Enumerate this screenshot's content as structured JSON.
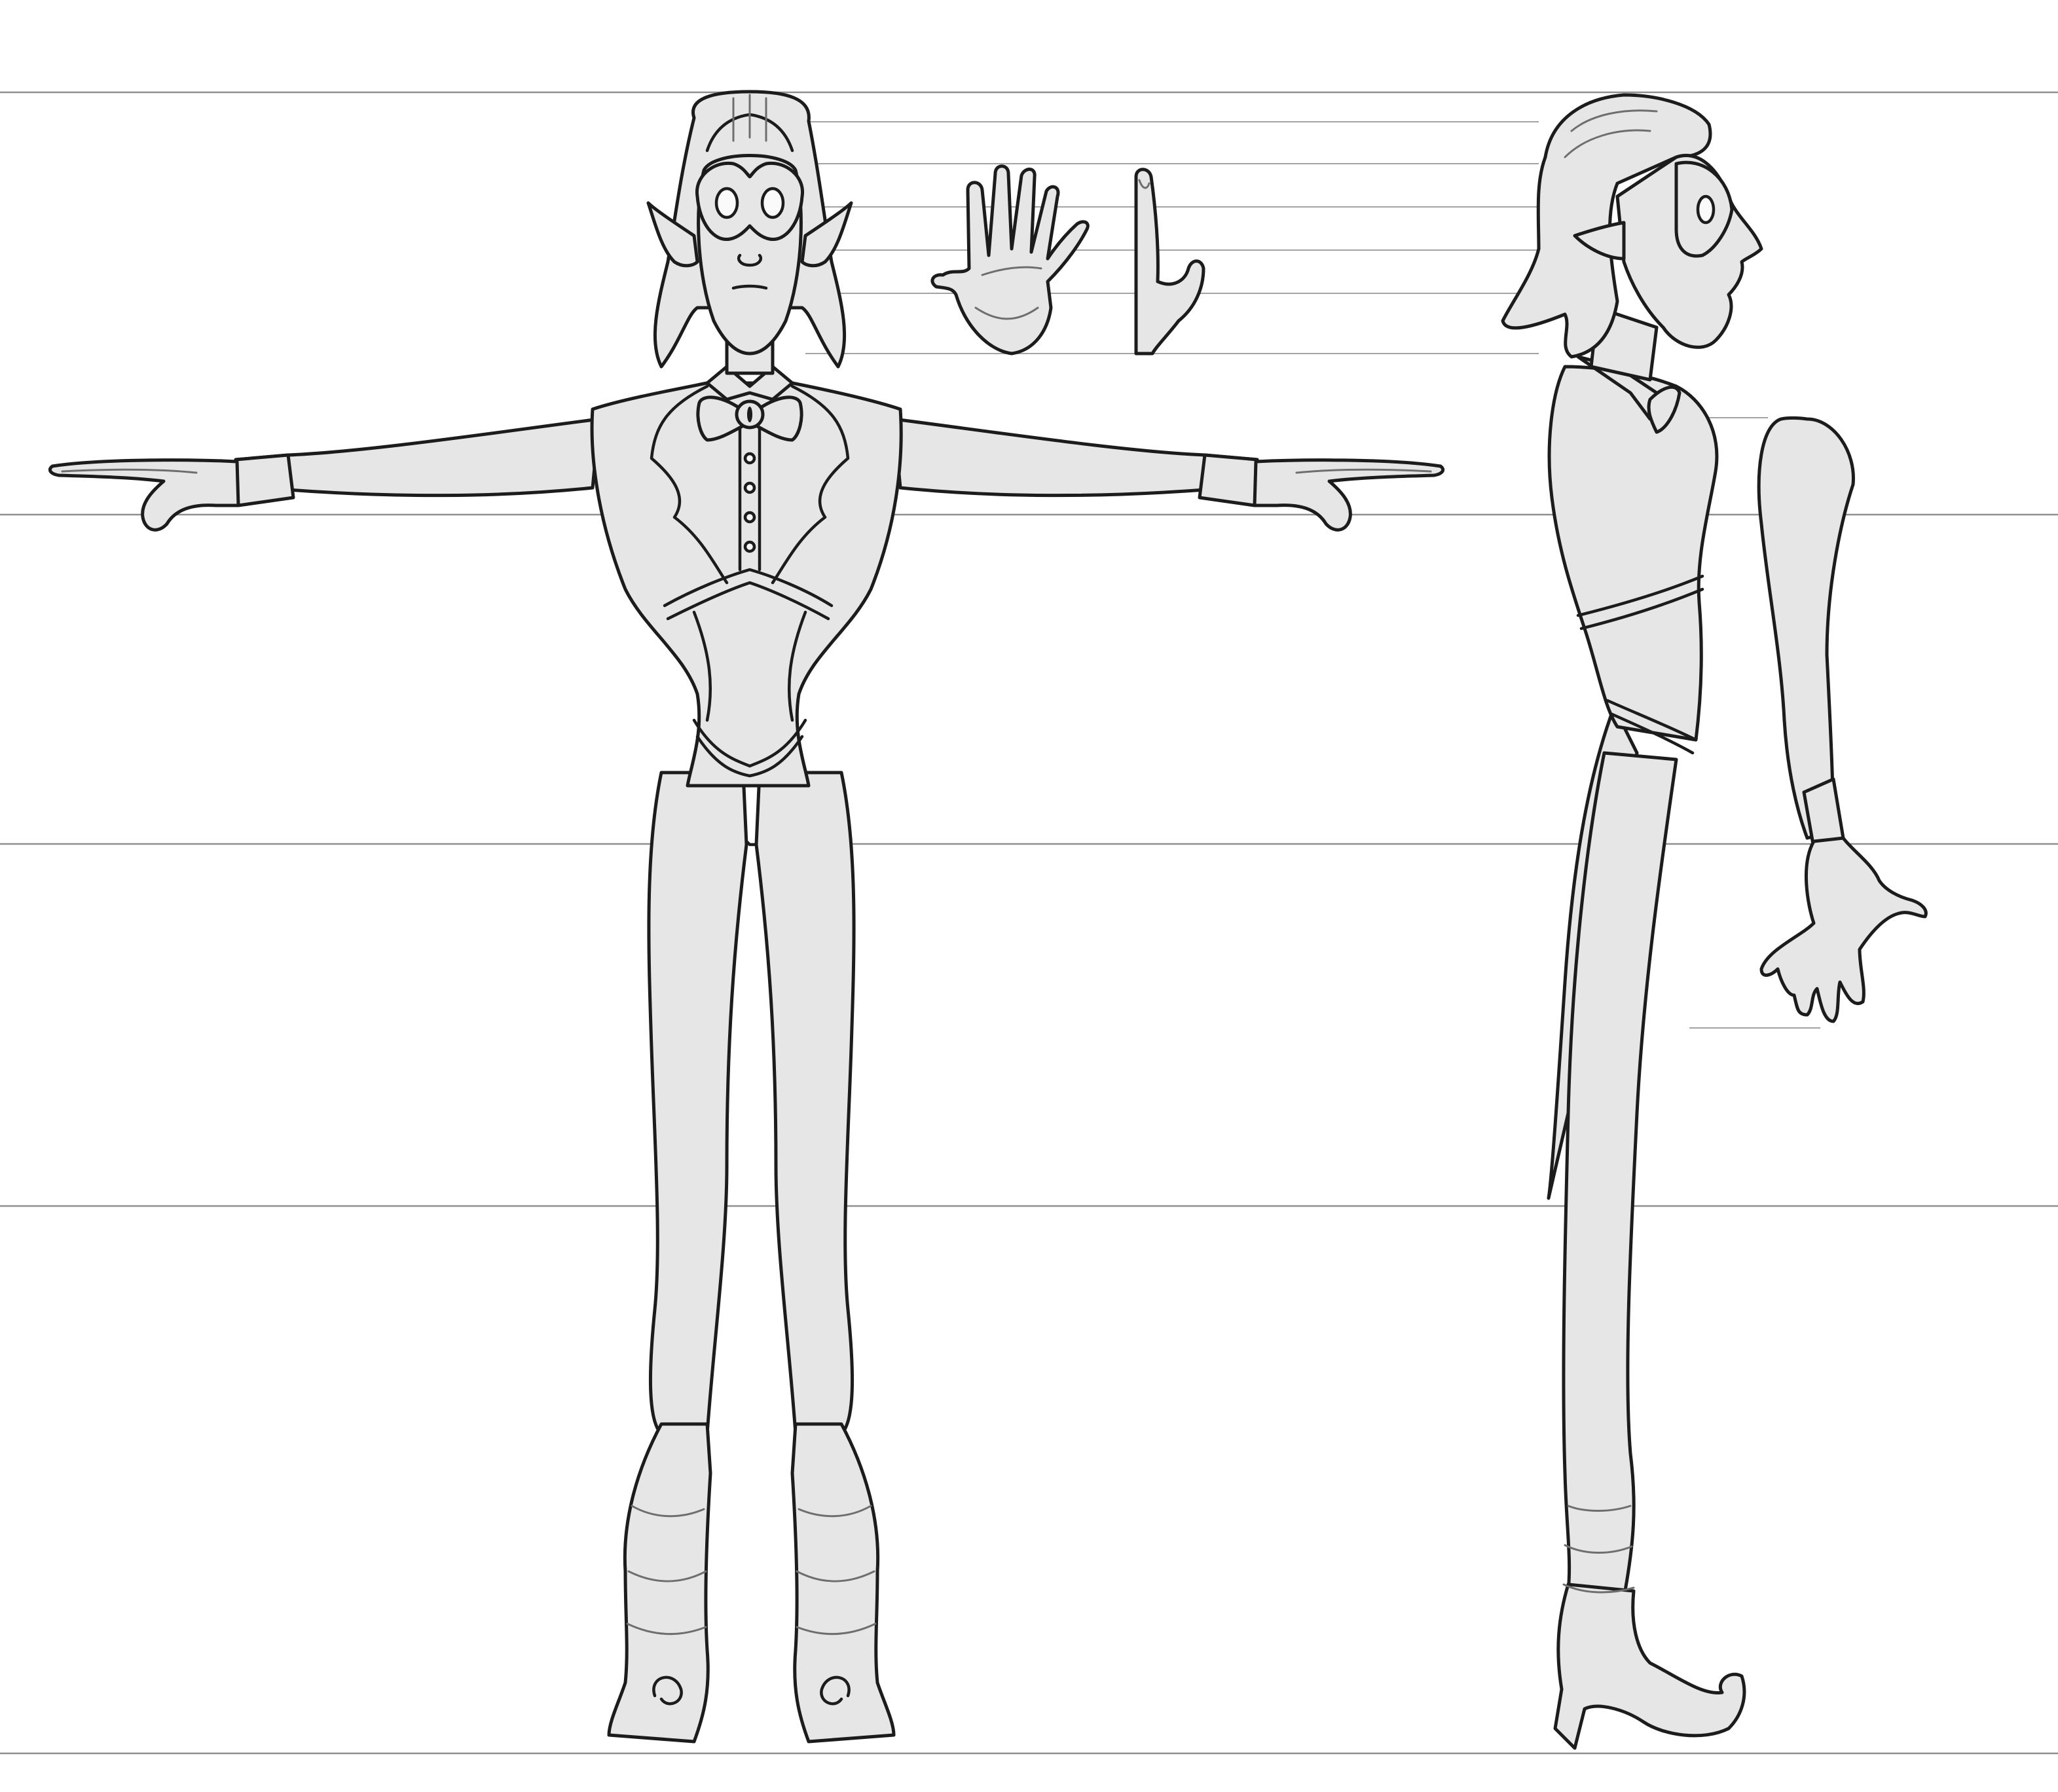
{
  "sheet": {
    "type": "character turnaround sheet",
    "style": "grayscale line art",
    "background_color": "#ffffff",
    "fill_color": "#e6e6e6",
    "line_color": "#1c1c1c",
    "guide_color": "#8f8f8f"
  },
  "views": [
    "front",
    "hand-palm",
    "hand-side",
    "side"
  ],
  "icons": [
    "character-front-icon",
    "hand-palm-icon",
    "hand-side-icon",
    "character-side-icon"
  ]
}
